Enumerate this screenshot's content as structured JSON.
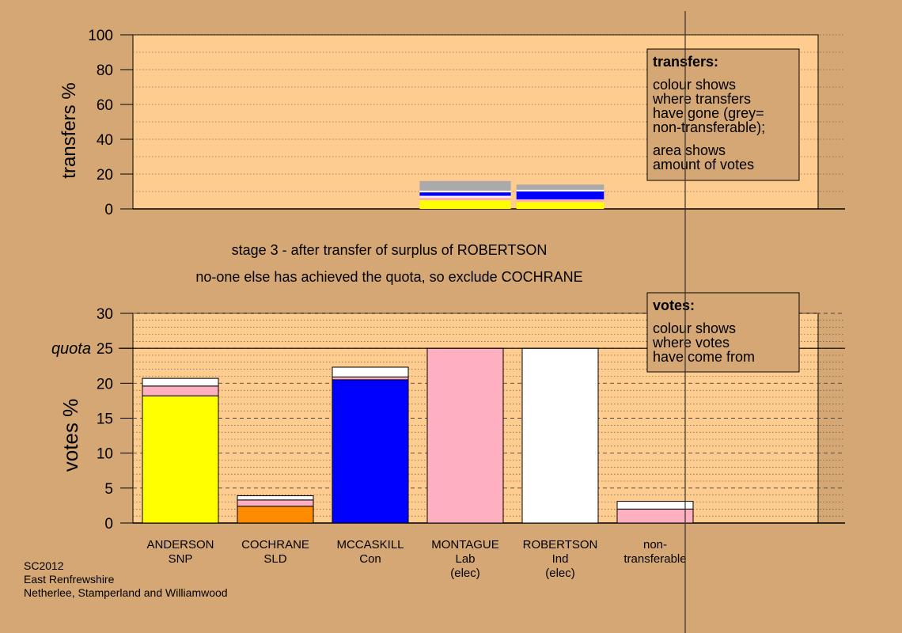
{
  "colors": {
    "background": "#d4a774",
    "plot_bg": "#ffcc8f",
    "SNP": "#ffff00",
    "SLD": "#ff8c00",
    "Con": "#0000ff",
    "Lab": "#ffb0c0",
    "Ind": "#ffffff",
    "non_transferable": "#aaaaaa"
  },
  "stage_text": {
    "line1": "stage 3 - after transfer of surplus of ROBERTSON",
    "line2": "no-one else has achieved the quota, so exclude COCHRANE"
  },
  "footer": [
    "SC2012",
    "East Renfrewshire",
    "Netherlee, Stamperland and Williamwood"
  ],
  "transfers_legend": {
    "title": "transfers:",
    "line1": [
      "colour shows",
      "where transfers",
      "have gone (grey=",
      "non-transferable);"
    ],
    "line2": [
      "area shows",
      "amount of votes"
    ]
  },
  "votes_legend": {
    "title": "votes:",
    "lines": [
      "colour shows",
      "where votes",
      "have come from"
    ]
  },
  "chart_data": [
    {
      "type": "bar",
      "name": "transfers",
      "ylabel": "transfers %",
      "ylim": [
        0,
        100
      ],
      "yticks": [
        0,
        20,
        40,
        60,
        80,
        100
      ],
      "grid": true,
      "legend": "top-right",
      "categories": [
        "ANDERSON",
        "COCHRANE",
        "MCCASKILL",
        "MONTAGUE",
        "ROBERTSON",
        "non-transferable"
      ],
      "bars": [
        {
          "category": "MONTAGUE",
          "width_fraction": 1.0,
          "segments": [
            {
              "party": "SNP",
              "value": 5.0
            },
            {
              "party": "Lab",
              "value": 1.5
            },
            {
              "party": "Ind",
              "value": 1.0
            },
            {
              "party": "Con",
              "value": 2.0
            },
            {
              "party": "Ind",
              "value": 1.0
            },
            {
              "party": "non_transferable",
              "value": 5.5
            }
          ]
        },
        {
          "category": "ROBERTSON",
          "width_fraction": 0.96,
          "segments": [
            {
              "party": "SNP",
              "value": 4.0
            },
            {
              "party": "Lab",
              "value": 1.5
            },
            {
              "party": "Con",
              "value": 4.5
            },
            {
              "party": "Ind",
              "value": 1.0
            },
            {
              "party": "non_transferable",
              "value": 3.0
            }
          ]
        }
      ]
    },
    {
      "type": "bar",
      "name": "votes",
      "ylabel": "votes %",
      "ylim": [
        0,
        30
      ],
      "yticks": [
        0,
        5,
        10,
        15,
        20,
        25,
        30
      ],
      "quota": 25,
      "quota_label": "quota",
      "grid": true,
      "legend": "top-right",
      "categories": [
        {
          "lines": [
            "ANDERSON",
            "SNP"
          ]
        },
        {
          "lines": [
            "COCHRANE",
            "SLD"
          ]
        },
        {
          "lines": [
            "MCCASKILL",
            "Con"
          ]
        },
        {
          "lines": [
            "MONTAGUE",
            "Lab",
            "(elec)"
          ]
        },
        {
          "lines": [
            "ROBERTSON",
            "Ind",
            "(elec)"
          ]
        },
        {
          "lines": [
            "non-",
            "transferable"
          ]
        }
      ],
      "bars": [
        {
          "category": "ANDERSON",
          "segments": [
            {
              "party": "SNP",
              "value": 18.2
            },
            {
              "party": "Lab",
              "value": 1.4
            },
            {
              "party": "Ind",
              "value": 1.1
            }
          ]
        },
        {
          "category": "COCHRANE",
          "segments": [
            {
              "party": "SLD",
              "value": 2.4
            },
            {
              "party": "Lab",
              "value": 0.9
            },
            {
              "party": "Ind",
              "value": 0.6
            }
          ]
        },
        {
          "category": "MCCASKILL",
          "segments": [
            {
              "party": "Con",
              "value": 20.5
            },
            {
              "party": "Lab",
              "value": 0.4
            },
            {
              "party": "Ind",
              "value": 1.4
            }
          ]
        },
        {
          "category": "MONTAGUE",
          "segments": [
            {
              "party": "Lab",
              "value": 25.0
            }
          ]
        },
        {
          "category": "ROBERTSON",
          "segments": [
            {
              "party": "Ind",
              "value": 25.0
            }
          ]
        },
        {
          "category": "non-transferable",
          "segments": [
            {
              "party": "Lab",
              "value": 2.0
            },
            {
              "party": "Ind",
              "value": 1.1
            }
          ]
        }
      ]
    }
  ]
}
